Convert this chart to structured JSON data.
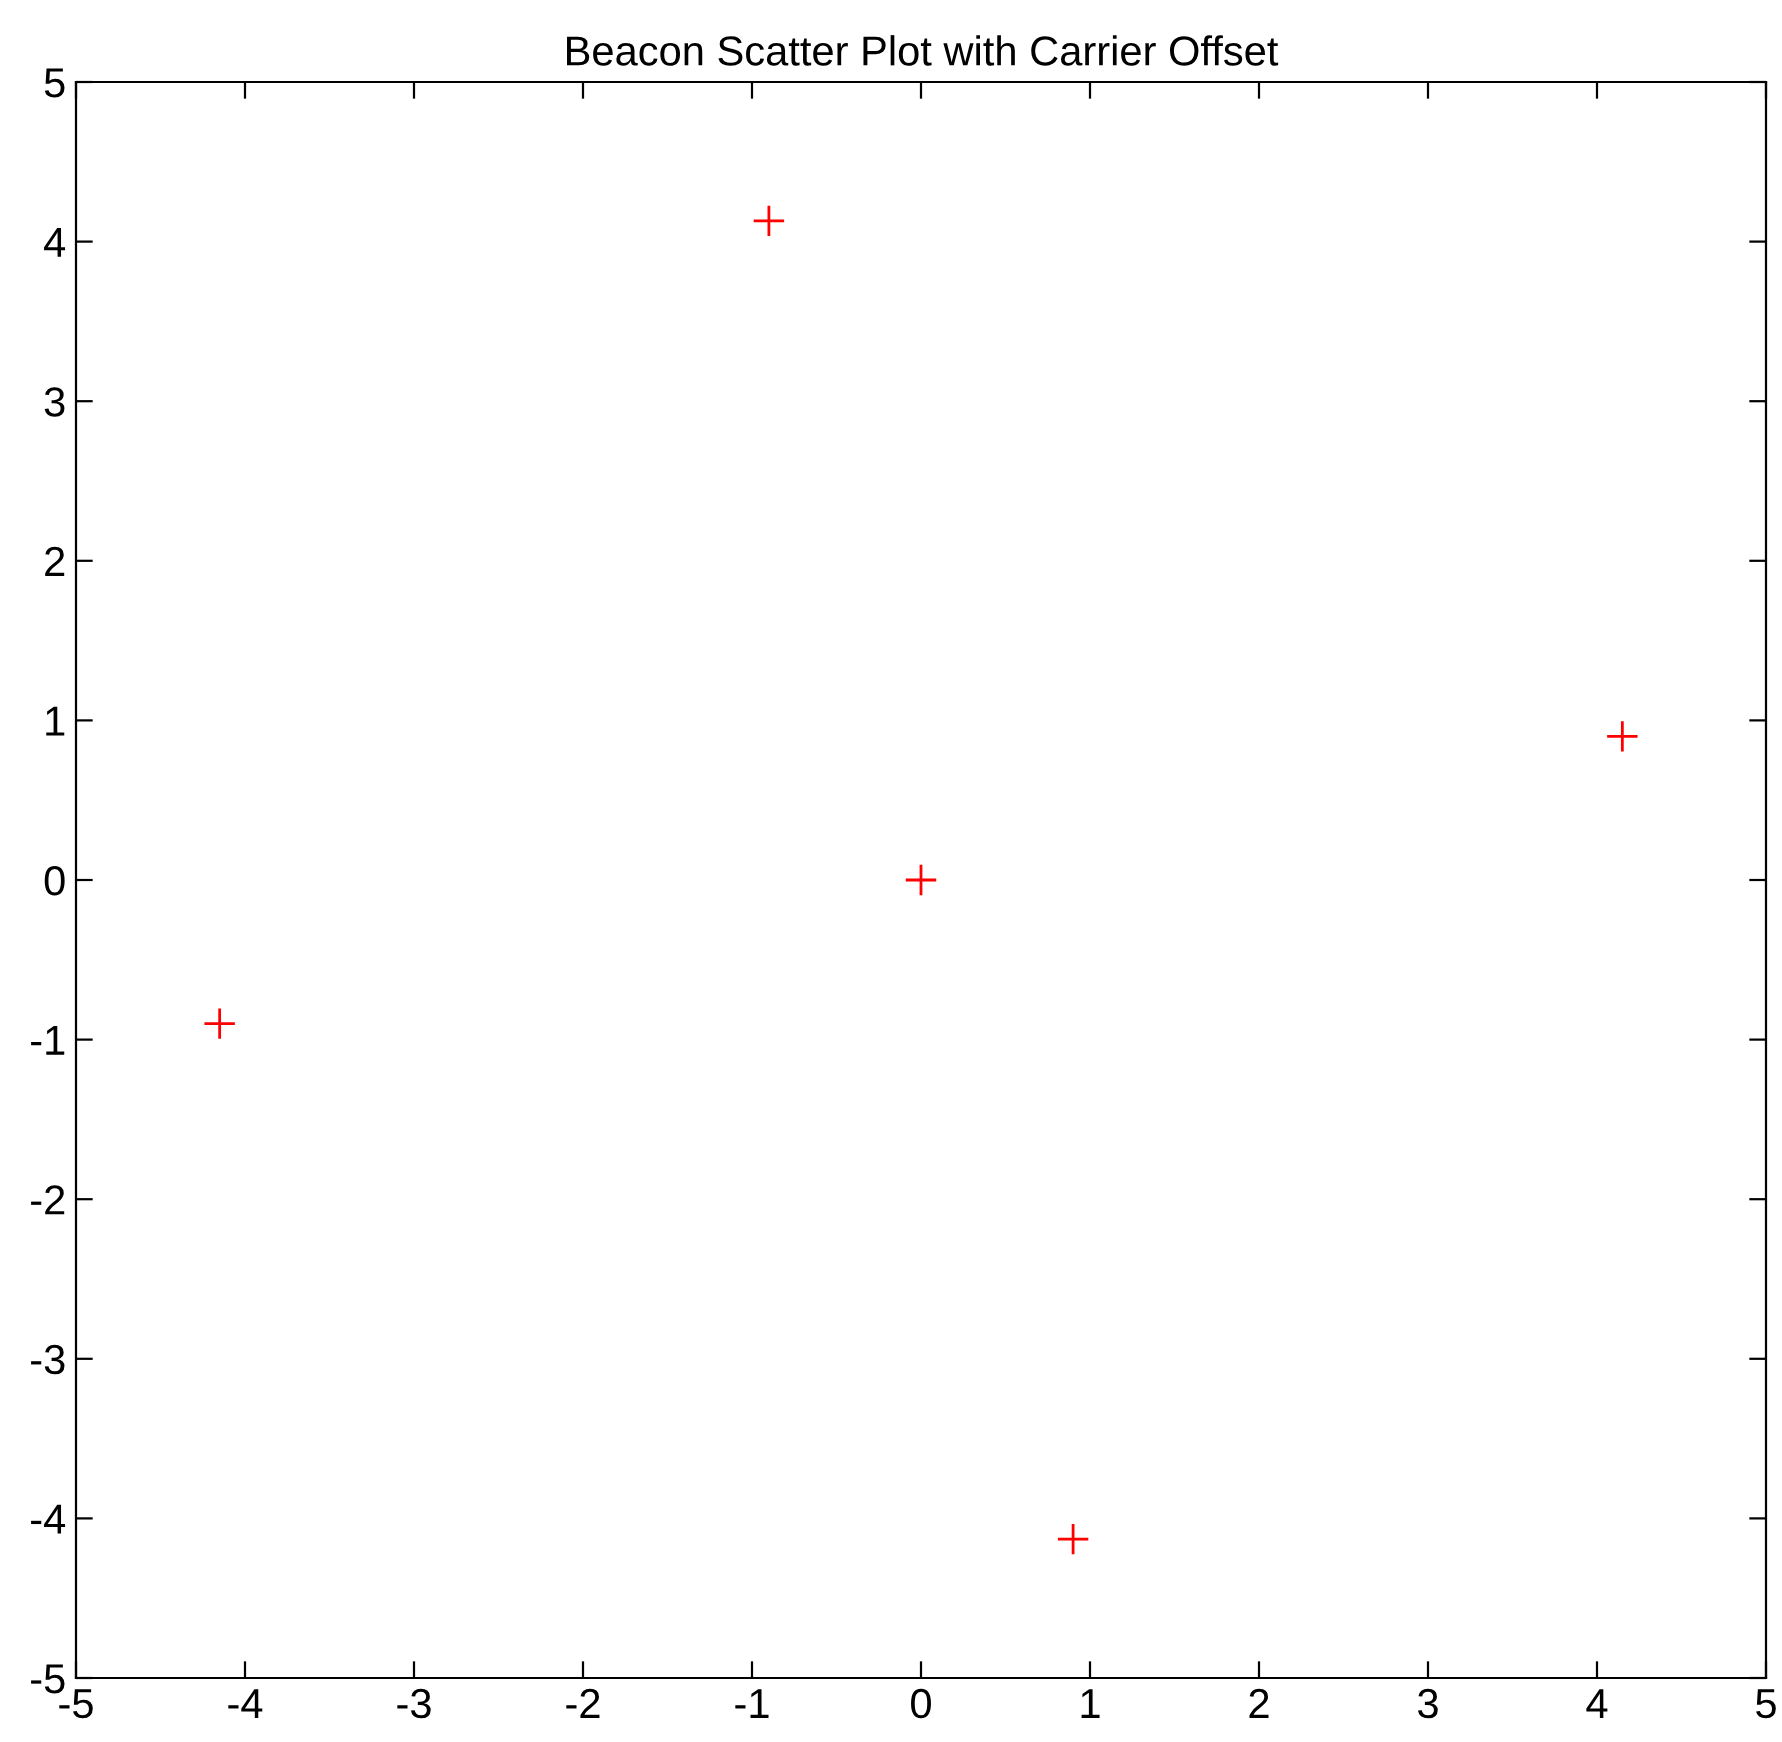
{
  "chart_data": {
    "type": "scatter",
    "title": "Beacon Scatter Plot with Carrier Offset",
    "x": [
      -0.9,
      4.15,
      0,
      -4.15,
      0.9
    ],
    "values": [
      4.13,
      0.9,
      0,
      -0.9,
      -4.13
    ],
    "color": "#ff0000",
    "marker": "cross",
    "xlim": [
      -5,
      5
    ],
    "ylim": [
      -5,
      5
    ],
    "xticks": [
      {
        "value": -5,
        "label": "-5"
      },
      {
        "value": -4,
        "label": "-4"
      },
      {
        "value": -3,
        "label": "-3"
      },
      {
        "value": -2,
        "label": "-2"
      },
      {
        "value": -1,
        "label": "-1"
      },
      0,
      1,
      2,
      3,
      4,
      5
    ],
    "yticks": [
      {
        "value": -5,
        "label": "-5"
      },
      {
        "value": -4,
        "label": "-4"
      },
      {
        "value": -3,
        "label": "-3"
      },
      {
        "value": -2,
        "label": "-2"
      },
      {
        "value": -1,
        "label": "-1"
      },
      0,
      1,
      2,
      3,
      4,
      5
    ],
    "grid": false
  }
}
